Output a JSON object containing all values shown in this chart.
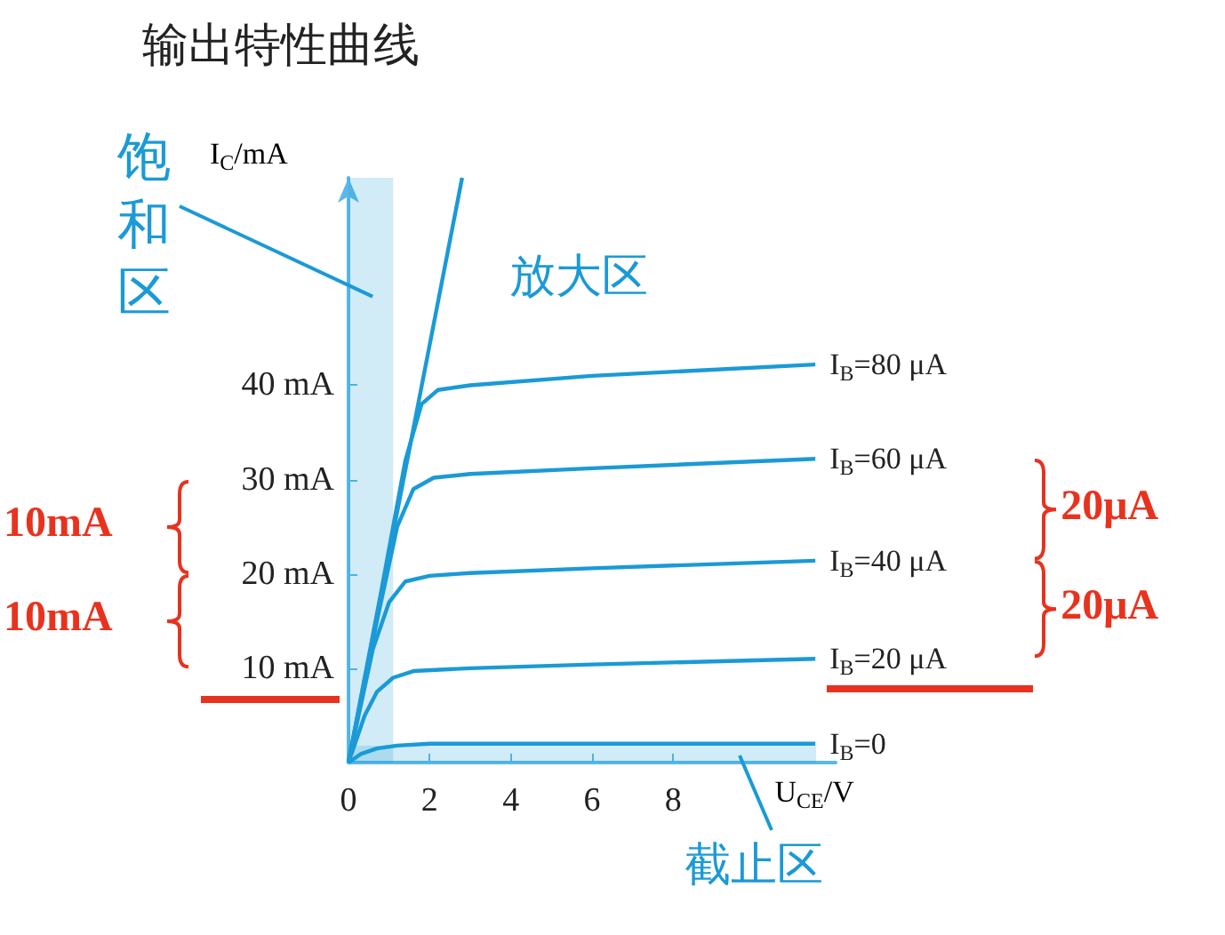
{
  "chart_data": {
    "type": "line",
    "title": "输出特性曲线",
    "xlabel": "U$_{CE}$/V",
    "ylabel": "I$_{C}$/mA",
    "xlim": [
      0,
      12
    ],
    "xticks": [
      0,
      2,
      4,
      6,
      8
    ],
    "ylim": [
      0,
      62
    ],
    "yticks": [
      {
        "value": 10,
        "label": "10 mA"
      },
      {
        "value": 20,
        "label": "20 mA"
      },
      {
        "value": 30,
        "label": "30 mA"
      },
      {
        "value": 40,
        "label": "40 mA"
      }
    ],
    "marker": "none",
    "grid": false,
    "legend": false,
    "series": [
      {
        "name": "I$_{B}$=80 μA",
        "color": "#1a9ad6",
        "x": [
          0,
          0.8,
          1.4,
          1.8,
          2.2,
          3,
          6,
          11.5
        ],
        "values": [
          0,
          18,
          32,
          38,
          39.5,
          40,
          41,
          42.2
        ]
      },
      {
        "name": "I$_{B}$=60 μA",
        "color": "#1a9ad6",
        "x": [
          0,
          0.7,
          1.2,
          1.6,
          2.1,
          3,
          6,
          11.5
        ],
        "values": [
          0,
          15,
          25,
          29,
          30.2,
          30.6,
          31.2,
          32.2
        ]
      },
      {
        "name": "I$_{B}$=40 μA",
        "color": "#1a9ad6",
        "x": [
          0,
          0.6,
          1,
          1.4,
          2,
          3,
          6,
          11.5
        ],
        "values": [
          0,
          12,
          17,
          19.2,
          19.8,
          20.1,
          20.6,
          21.4
        ]
      },
      {
        "name": "I$_{B}$=20 μA",
        "color": "#1a9ad6",
        "x": [
          0,
          0.4,
          0.7,
          1.1,
          1.6,
          3,
          6,
          11.5
        ],
        "values": [
          0,
          5,
          7.5,
          9,
          9.7,
          10,
          10.4,
          11
        ]
      },
      {
        "name": "I$_{B}$=0",
        "color": "#1a9ad6",
        "x": [
          0,
          0.3,
          0.7,
          1.2,
          2,
          6,
          11.5
        ],
        "values": [
          0,
          0.9,
          1.5,
          1.8,
          2,
          2,
          2
        ]
      },
      {
        "color": "#1a9ad6",
        "x": [
          0,
          2.8
        ],
        "values": [
          0,
          62
        ]
      }
    ],
    "bands": [
      {
        "axis": "x",
        "from": 0,
        "to": 1.1,
        "label": "饱和区",
        "color": "#1a9ad6"
      },
      {
        "axis": "y",
        "from": 0,
        "to": 1.8,
        "label": "截止区",
        "color": "#1a9ad6"
      }
    ],
    "annotations": [
      "放大区",
      "10mA",
      "10mA",
      "20μA",
      "20μA"
    ]
  }
}
